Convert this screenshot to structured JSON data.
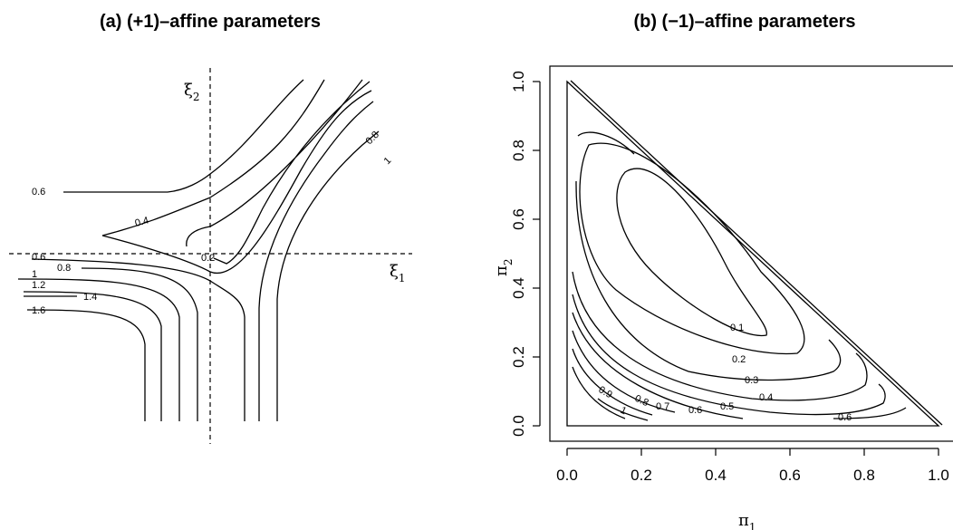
{
  "chart_data": [
    {
      "type": "contour",
      "title": "(a) (+1)–affine parameters",
      "axes": [
        {
          "label_main": "ξ",
          "label_sub": "1",
          "role": "horizontal"
        },
        {
          "label_main": "ξ",
          "label_sub": "2",
          "role": "vertical"
        }
      ],
      "contour_levels": [
        "0.2",
        "0.4",
        "0.6",
        "0.8",
        "1",
        "1.2",
        "1.4",
        "1.6",
        "0.6",
        "0.8",
        "1"
      ]
    },
    {
      "type": "contour",
      "title": "(b) (−1)–affine parameters",
      "xlabel_main": "π",
      "xlabel_sub": "1",
      "ylabel_main": "π",
      "ylabel_sub": "2",
      "xlim": [
        0,
        1
      ],
      "ylim": [
        0,
        1
      ],
      "xticks": [
        "0.0",
        "0.2",
        "0.4",
        "0.6",
        "0.8",
        "1.0"
      ],
      "yticks": [
        "0.0",
        "0.2",
        "0.4",
        "0.6",
        "0.8",
        "1.0"
      ],
      "contour_levels": [
        "0.1",
        "0.2",
        "0.3",
        "0.4",
        "0.5",
        "0.6",
        "0.7",
        "0.8",
        "0.9",
        "1",
        "0.6"
      ]
    }
  ]
}
